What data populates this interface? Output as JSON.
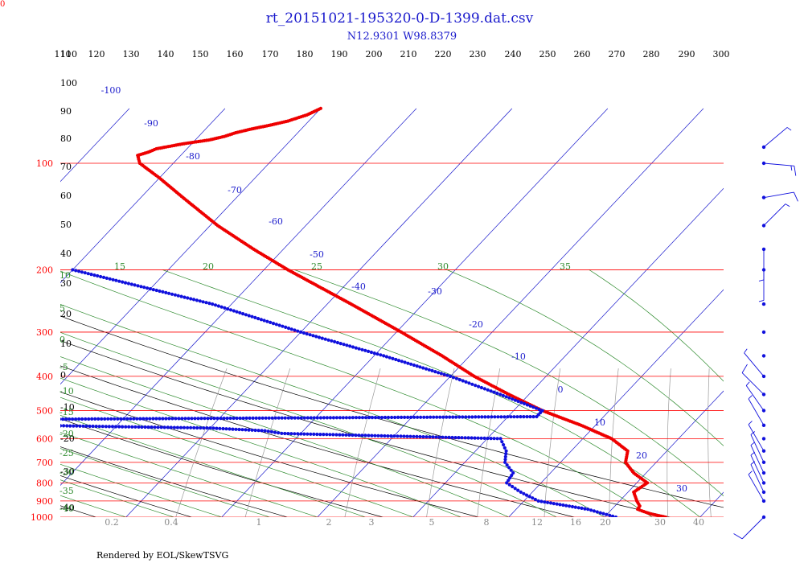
{
  "chart_data": {
    "type": "skew-t",
    "title": "rt_20151021-195320-0-D-1399.dat.csv",
    "subtitle": "N12.9301 W98.8379",
    "footer": "Rendered by EOL/SkewTSVG",
    "corner_label": "0",
    "colors": {
      "title": "#1a1acc",
      "isobar": "#ff0000",
      "isotherm": "#1a1acc",
      "dry_adiabat": "#000000",
      "moist_adiabat": "#2e8b2e",
      "mixing_ratio": "#9a9a9a",
      "temperature": "#ee0000",
      "dewpoint": "#1010dd",
      "wind": "#1010dd"
    },
    "pressure_labels": [
      "100",
      "200",
      "300",
      "400",
      "500",
      "600",
      "700",
      "800",
      "900",
      "1000"
    ],
    "isotherm_labels": [
      "-100",
      "-90",
      "-80",
      "-70",
      "-60",
      "-50",
      "-40",
      "-30",
      "-20",
      "-10",
      "0",
      "10",
      "20",
      "30"
    ],
    "theta_labels": [
      "110",
      "120",
      "130",
      "140",
      "150",
      "160",
      "170",
      "180",
      "190",
      "200",
      "210",
      "220",
      "230",
      "240",
      "250",
      "260",
      "270",
      "280",
      "290",
      "300"
    ],
    "theta_left_labels": [
      "110",
      "100",
      "90",
      "80",
      "70",
      "60",
      "50",
      "40",
      "30",
      "20",
      "10",
      "0",
      "-10",
      "-20",
      "-30",
      "-40"
    ],
    "moist_top_labels": [
      "15",
      "20",
      "25",
      "30",
      "35"
    ],
    "moist_left_labels": [
      "10",
      "5",
      "0",
      "-5",
      "-10",
      "-15",
      "-20",
      "-25",
      "-30",
      "-35",
      "-40"
    ],
    "mixing_labels": [
      "0.2",
      "0.4",
      "1",
      "2",
      "3",
      "5",
      "8",
      "12",
      "16",
      "20",
      "30",
      "40"
    ],
    "temperature": [
      [
        1000,
        16.4
      ],
      [
        980,
        14.6
      ],
      [
        960,
        13.3
      ],
      [
        950,
        12.7
      ],
      [
        930,
        12.6
      ],
      [
        900,
        11.8
      ],
      [
        850,
        10.6
      ],
      [
        800,
        11.1
      ],
      [
        750,
        8.7
      ],
      [
        700,
        6.8
      ],
      [
        650,
        5.9
      ],
      [
        600,
        3.0
      ],
      [
        550,
        -1.5
      ],
      [
        500,
        -7.0
      ],
      [
        450,
        -12.1
      ],
      [
        400,
        -17.5
      ],
      [
        350,
        -22.9
      ],
      [
        300,
        -29.5
      ],
      [
        250,
        -37.5
      ],
      [
        200,
        -47.5
      ],
      [
        175,
        -53.1
      ],
      [
        150,
        -59.2
      ],
      [
        125,
        -65.6
      ],
      [
        110,
        -70.0
      ],
      [
        100,
        -73.5
      ],
      [
        95,
        -74.5
      ],
      [
        93,
        -73.7
      ],
      [
        91,
        -73.2
      ],
      [
        88,
        -70.8
      ],
      [
        86,
        -68.6
      ],
      [
        84,
        -67.3
      ],
      [
        82,
        -66.5
      ],
      [
        80,
        -65.2
      ],
      [
        78,
        -63.6
      ],
      [
        76,
        -62.2
      ],
      [
        73,
        -60.8
      ],
      [
        70,
        -60.0
      ]
    ],
    "dewpoint": [
      [
        1000,
        11.2
      ],
      [
        950,
        7.5
      ],
      [
        900,
        1.5
      ],
      [
        850,
        -1.2
      ],
      [
        800,
        -3.6
      ],
      [
        750,
        -3.9
      ],
      [
        700,
        -5.8
      ],
      [
        650,
        -6.8
      ],
      [
        600,
        -8.6
      ],
      [
        580,
        -32.0
      ],
      [
        570,
        -34.0
      ],
      [
        560,
        -40.0
      ],
      [
        555,
        -50.0
      ],
      [
        550,
        -59.0
      ],
      [
        545,
        -62.0
      ],
      [
        540,
        -75.0
      ],
      [
        530,
        -65.0
      ],
      [
        520,
        -7.0
      ],
      [
        500,
        -7.0
      ],
      [
        450,
        -13.0
      ],
      [
        400,
        -20.0
      ],
      [
        350,
        -29.0
      ],
      [
        300,
        -40.0
      ],
      [
        250,
        -52.0
      ],
      [
        200,
        -70.0
      ]
    ],
    "wind": [
      [
        1000,
        225,
        10
      ],
      [
        900,
        330,
        5
      ],
      [
        850,
        335,
        5
      ],
      [
        800,
        335,
        5
      ],
      [
        750,
        335,
        5
      ],
      [
        700,
        335,
        5
      ],
      [
        650,
        330,
        5
      ],
      [
        600,
        330,
        0
      ],
      [
        550,
        330,
        5
      ],
      [
        500,
        325,
        5
      ],
      [
        450,
        315,
        10
      ],
      [
        400,
        320,
        5
      ],
      [
        350,
        320,
        0
      ],
      [
        300,
        320,
        0
      ],
      [
        250,
        320,
        0
      ],
      [
        200,
        180,
        5
      ],
      [
        175,
        180,
        5
      ],
      [
        150,
        45,
        5
      ],
      [
        125,
        80,
        10
      ],
      [
        100,
        95,
        15
      ],
      [
        90,
        50,
        5
      ]
    ]
  }
}
